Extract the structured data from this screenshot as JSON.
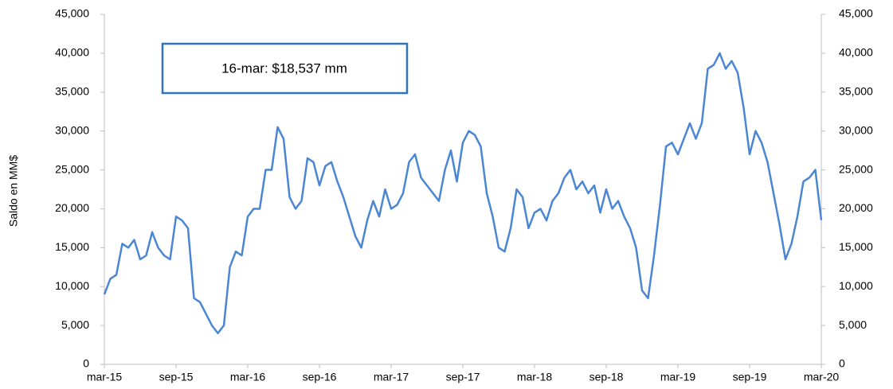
{
  "chart_data": {
    "type": "line",
    "y_label": "Saldo en MM$",
    "annotation": "16-mar: $18,537 mm",
    "color": "#4a86d4",
    "categories": [
      "mar-15",
      null,
      null,
      null,
      null,
      null,
      null,
      null,
      null,
      null,
      null,
      null,
      "sep-15",
      null,
      null,
      null,
      null,
      null,
      null,
      null,
      null,
      null,
      null,
      null,
      "mar-16",
      null,
      null,
      null,
      null,
      null,
      null,
      null,
      null,
      null,
      null,
      null,
      "sep-16",
      null,
      null,
      null,
      null,
      null,
      null,
      null,
      null,
      null,
      null,
      null,
      "mar-17",
      null,
      null,
      null,
      null,
      null,
      null,
      null,
      null,
      null,
      null,
      null,
      "sep-17",
      null,
      null,
      null,
      null,
      null,
      null,
      null,
      null,
      null,
      null,
      null,
      "mar-18",
      null,
      null,
      null,
      null,
      null,
      null,
      null,
      null,
      null,
      null,
      null,
      "sep-18",
      null,
      null,
      null,
      null,
      null,
      null,
      null,
      null,
      null,
      null,
      null,
      "mar-19",
      null,
      null,
      null,
      null,
      null,
      null,
      null,
      null,
      null,
      null,
      null,
      "sep-19",
      null,
      null,
      null,
      null,
      null,
      null,
      null,
      null,
      null,
      null,
      null,
      "mar-20"
    ],
    "values": [
      9000,
      11000,
      11500,
      15500,
      15000,
      16000,
      13500,
      14000,
      17000,
      15000,
      14000,
      13500,
      19000,
      18500,
      17500,
      8500,
      8000,
      6500,
      5000,
      4000,
      5000,
      12500,
      14500,
      14000,
      19000,
      20000,
      20000,
      25000,
      25000,
      30500,
      29000,
      21500,
      20000,
      21000,
      26500,
      26000,
      23000,
      25500,
      26000,
      23500,
      21500,
      19000,
      16500,
      15000,
      18500,
      21000,
      19000,
      22500,
      20000,
      20500,
      22000,
      26000,
      27000,
      24000,
      23000,
      22000,
      21000,
      25000,
      27500,
      23500,
      28500,
      30000,
      29500,
      28000,
      22000,
      19000,
      15000,
      14500,
      17500,
      22500,
      21500,
      17500,
      19500,
      20000,
      18500,
      21000,
      22000,
      24000,
      25000,
      22500,
      23500,
      22000,
      23000,
      19500,
      22500,
      20000,
      21000,
      19000,
      17500,
      15000,
      9500,
      8500,
      14000,
      20500,
      28000,
      28500,
      27000,
      29000,
      31000,
      29000,
      31000,
      38000,
      38500,
      40000,
      38000,
      39000,
      37500,
      33000,
      27000,
      30000,
      28500,
      26000,
      22000,
      18000,
      13500,
      15500,
      19000,
      23500,
      24000,
      25000,
      18537
    ],
    "ylim": [
      0,
      45000
    ],
    "yticks": [
      0,
      {
        "value": 5000,
        "label": "5,000"
      },
      {
        "value": 10000,
        "label": "10,000"
      },
      {
        "value": 15000,
        "label": "15,000"
      },
      {
        "value": 20000,
        "label": "20,000"
      },
      {
        "value": 25000,
        "label": "25,000"
      },
      {
        "value": 30000,
        "label": "30,000"
      },
      {
        "value": 35000,
        "label": "35,000"
      },
      {
        "value": 40000,
        "label": "40,000"
      },
      {
        "value": 45000,
        "label": "45,000"
      }
    ],
    "y2lim": [
      0,
      45000
    ],
    "y2ticks": [
      0,
      {
        "value": 5000,
        "label": "5,000"
      },
      {
        "value": 10000,
        "label": "10,000"
      },
      {
        "value": 15000,
        "label": "15,000"
      },
      {
        "value": 20000,
        "label": "20,000"
      },
      {
        "value": 25000,
        "label": "25,000"
      },
      {
        "value": 30000,
        "label": "30,000"
      },
      {
        "value": 35000,
        "label": "35,000"
      },
      {
        "value": 40000,
        "label": "40,000"
      },
      {
        "value": 45000,
        "label": "45,000"
      }
    ]
  }
}
